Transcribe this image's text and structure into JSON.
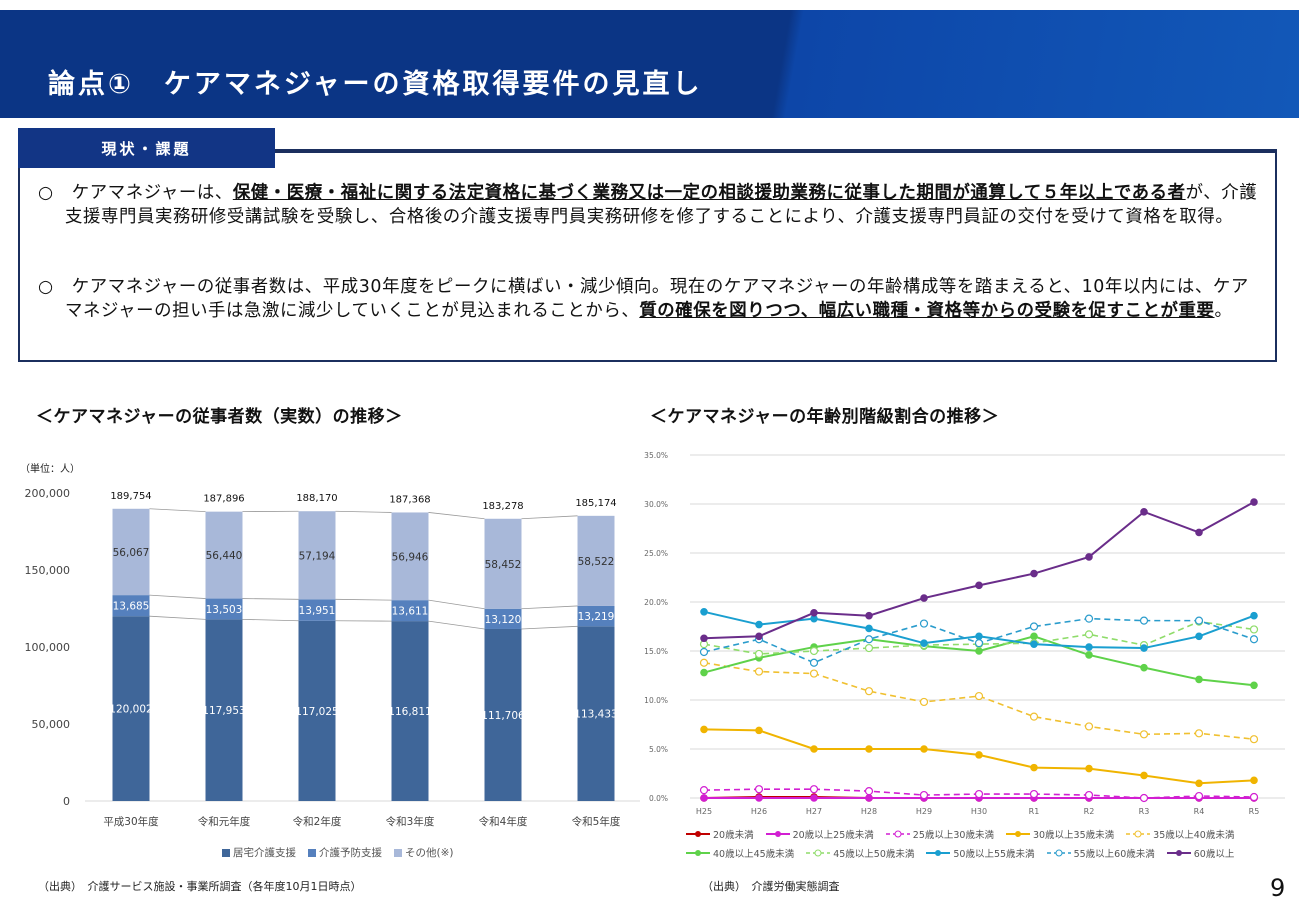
{
  "header": {
    "title": "論点①　ケアマネジャーの資格取得要件の見直し"
  },
  "section_tag": "現状・課題",
  "paragraphs": [
    {
      "pre": "○　ケアマネジャーは、",
      "bold": "保健・医療・福祉に関する法定資格に基づく業務又は一定の相談援助業務に従事した期間が通算して５年以上である者",
      "post": "が、介護支援専門員実務研修受講試験を受験し、合格後の介護支援専門員実務研修を修了することにより、介護支援専門員証の交付を受けて資格を取得。"
    },
    {
      "pre": "○　ケアマネジャーの従事者数は、平成30年度をピークに横ばい・減少傾向。現在のケアマネジャーの年齢構成等を踏まえると、10年以内には、ケアマネジャーの担い手は急激に減少していくことが見込まれることから、",
      "bold": "質の確保を図りつつ、幅広い職種・資格等からの受験を促すことが重要",
      "post": "。"
    }
  ],
  "left_chart_title": "＜ケアマネジャーの従事者数（実数）の推移＞",
  "right_chart_title": "＜ケアマネジャーの年齢別階級割合の推移＞",
  "left_source": "（出典）　介護サービス施設・事業所調査（各年度10月1日時点）",
  "right_source": "（出典）　介護労働実態調査",
  "page_number": "9",
  "chart_data": [
    {
      "type": "bar",
      "stacked": true,
      "unit_label": "（単位：人）",
      "categories": [
        "平成30年度",
        "令和元年度",
        "令和2年度",
        "令和3年度",
        "令和4年度",
        "令和5年度"
      ],
      "ylim": [
        0,
        200000
      ],
      "yticks": [
        "0",
        "50,000",
        "100,000",
        "150,000",
        "200,000"
      ],
      "ytick_values": [
        0,
        50000,
        100000,
        150000,
        200000
      ],
      "series": [
        {
          "name": "居宅介護支援",
          "color": "#3f6699",
          "values": [
            120002,
            117953,
            117025,
            116811,
            111706,
            113433
          ],
          "labels": [
            "120,002",
            "117,953",
            "117,025",
            "116,811",
            "111,706",
            "113,433"
          ]
        },
        {
          "name": "介護予防支援",
          "color": "#5580bd",
          "values": [
            13685,
            13503,
            13951,
            13611,
            13120,
            13219
          ],
          "labels": [
            "13,685",
            "13,503",
            "13,951",
            "13,611",
            "13,120",
            "13,219"
          ]
        },
        {
          "name": "その他(※)",
          "color": "#a8b8d9",
          "values": [
            56067,
            56440,
            57194,
            56946,
            58452,
            58522
          ],
          "labels": [
            "56,067",
            "56,440",
            "57,194",
            "56,946",
            "58,452",
            "58,522"
          ]
        }
      ],
      "totals": [
        "189,754",
        "187,896",
        "188,170",
        "187,368",
        "183,278",
        "185,174"
      ],
      "total_values": [
        189754,
        187896,
        188170,
        187368,
        183278,
        185174
      ],
      "legend": "bottom"
    },
    {
      "type": "line",
      "x": [
        "H25",
        "H26",
        "H27",
        "H28",
        "H29",
        "H30",
        "R1",
        "R2",
        "R3",
        "R4",
        "R5"
      ],
      "ylim": [
        0,
        35
      ],
      "yticks": [
        "0.0%",
        "5.0%",
        "10.0%",
        "15.0%",
        "20.0%",
        "25.0%",
        "30.0%",
        "35.0%"
      ],
      "grid": true,
      "legend": "bottom",
      "series": [
        {
          "name": "20歳未満",
          "color": "#c00000",
          "dashed": false,
          "values": [
            0,
            0.1,
            0.1,
            0,
            0,
            0,
            0,
            0,
            0,
            0,
            0
          ]
        },
        {
          "name": "20歳以上25歳未満",
          "color": "#d21fd2",
          "dashed": false,
          "values": [
            0,
            0,
            0,
            0,
            0,
            0,
            0,
            0,
            0,
            0,
            0
          ]
        },
        {
          "name": "25歳以上30歳未満",
          "color": "#d21fd2",
          "dashed": true,
          "values": [
            0.8,
            0.9,
            0.9,
            0.7,
            0.3,
            0.4,
            0.4,
            0.3,
            0.0,
            0.2,
            0.1
          ]
        },
        {
          "name": "30歳以上35歳未満",
          "color": "#f0b400",
          "dashed": false,
          "values": [
            7.0,
            6.9,
            5.0,
            5.0,
            5.0,
            4.4,
            3.1,
            3.0,
            2.3,
            1.5,
            1.8
          ]
        },
        {
          "name": "35歳以上40歳未満",
          "color": "#f0c030",
          "dashed": true,
          "values": [
            13.8,
            12.9,
            12.7,
            10.9,
            9.8,
            10.4,
            8.3,
            7.3,
            6.5,
            6.6,
            6.0
          ]
        },
        {
          "name": "40歳以上45歳未満",
          "color": "#5fd24a",
          "dashed": false,
          "values": [
            12.8,
            14.3,
            15.4,
            16.2,
            15.5,
            15.0,
            16.5,
            14.6,
            13.3,
            12.1,
            11.5
          ]
        },
        {
          "name": "45歳以上50歳未満",
          "color": "#8fdc6a",
          "dashed": true,
          "values": [
            15.7,
            14.7,
            15.0,
            15.3,
            15.6,
            15.7,
            15.8,
            16.7,
            15.6,
            18.0,
            17.2
          ]
        },
        {
          "name": "50歳以上55歳未満",
          "color": "#1a9fd0",
          "dashed": false,
          "values": [
            19.0,
            17.7,
            18.3,
            17.3,
            15.8,
            16.5,
            15.7,
            15.4,
            15.3,
            16.5,
            18.6
          ]
        },
        {
          "name": "55歳以上60歳未満",
          "color": "#2a9ccc",
          "dashed": true,
          "values": [
            14.9,
            16.2,
            13.8,
            16.2,
            17.8,
            15.8,
            17.5,
            18.3,
            18.1,
            18.1,
            16.2
          ]
        },
        {
          "name": "60歳以上",
          "color": "#6a2d8a",
          "dashed": false,
          "values": [
            16.3,
            16.5,
            18.9,
            18.6,
            20.4,
            21.7,
            22.9,
            24.6,
            29.2,
            27.1,
            30.2
          ]
        }
      ]
    }
  ]
}
